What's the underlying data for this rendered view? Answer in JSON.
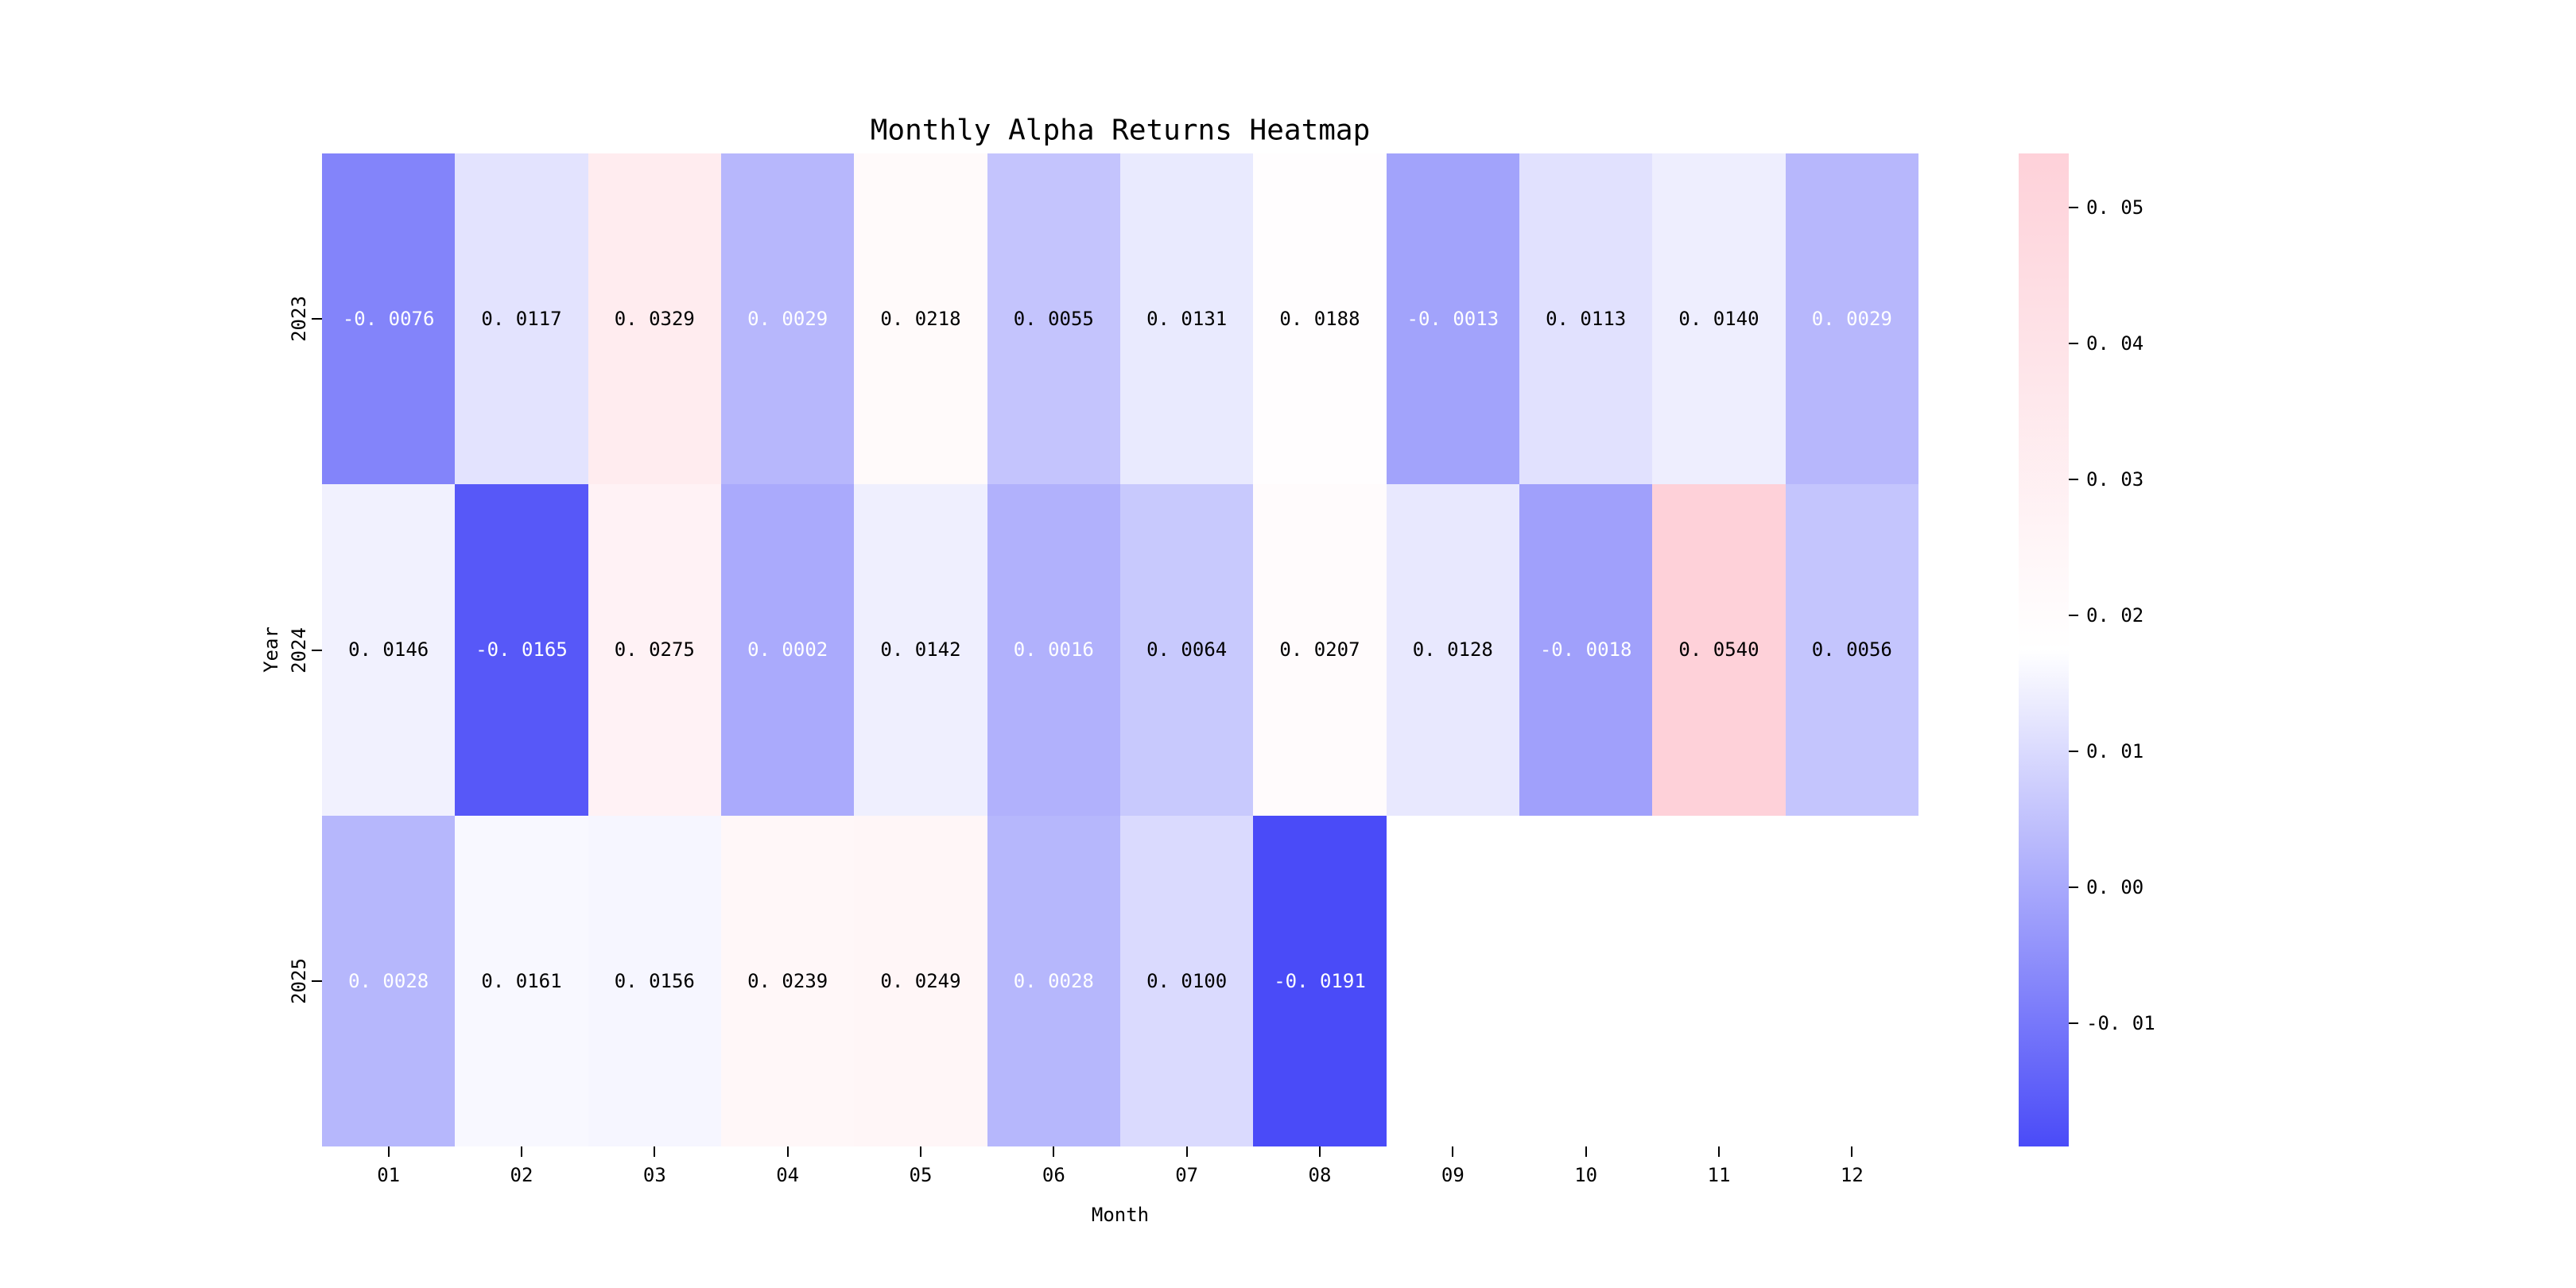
{
  "chart_data": {
    "type": "heatmap",
    "title": "Monthly Alpha Returns Heatmap",
    "xlabel": "Month",
    "ylabel": "Year",
    "x_categories": [
      "01",
      "02",
      "03",
      "04",
      "05",
      "06",
      "07",
      "08",
      "09",
      "10",
      "11",
      "12"
    ],
    "y_categories": [
      "2023",
      "2024",
      "2025"
    ],
    "series": [
      {
        "name": "2023",
        "values": [
          -0.0076,
          0.0117,
          0.0329,
          0.0029,
          0.0218,
          0.0055,
          0.0131,
          0.0188,
          -0.0013,
          0.0113,
          0.014,
          0.0029
        ]
      },
      {
        "name": "2024",
        "values": [
          0.0146,
          -0.0165,
          0.0275,
          0.0002,
          0.0142,
          0.0016,
          0.0064,
          0.0207,
          0.0128,
          -0.0018,
          0.054,
          0.0056
        ]
      },
      {
        "name": "2025",
        "values": [
          0.0028,
          0.0161,
          0.0156,
          0.0239,
          0.0249,
          0.0028,
          0.01,
          -0.0191,
          null,
          null,
          null,
          null
        ]
      }
    ],
    "vmin": -0.0191,
    "vmax": 0.054,
    "colorbar_ticks": [
      0.05,
      0.04,
      0.03,
      0.02,
      0.01,
      0.0,
      -0.01
    ],
    "colors": {
      "low": "#4a4bf8",
      "mid": "#ffffff",
      "high": "#fed1d9",
      "annot_dark": "#000000",
      "annot_light": "#ffffff",
      "background": "#ffffff"
    },
    "annot_decimals": 4,
    "cbar_decimals": 2,
    "annot_white_below": 0.004,
    "legend_position": "right",
    "grid": false
  }
}
